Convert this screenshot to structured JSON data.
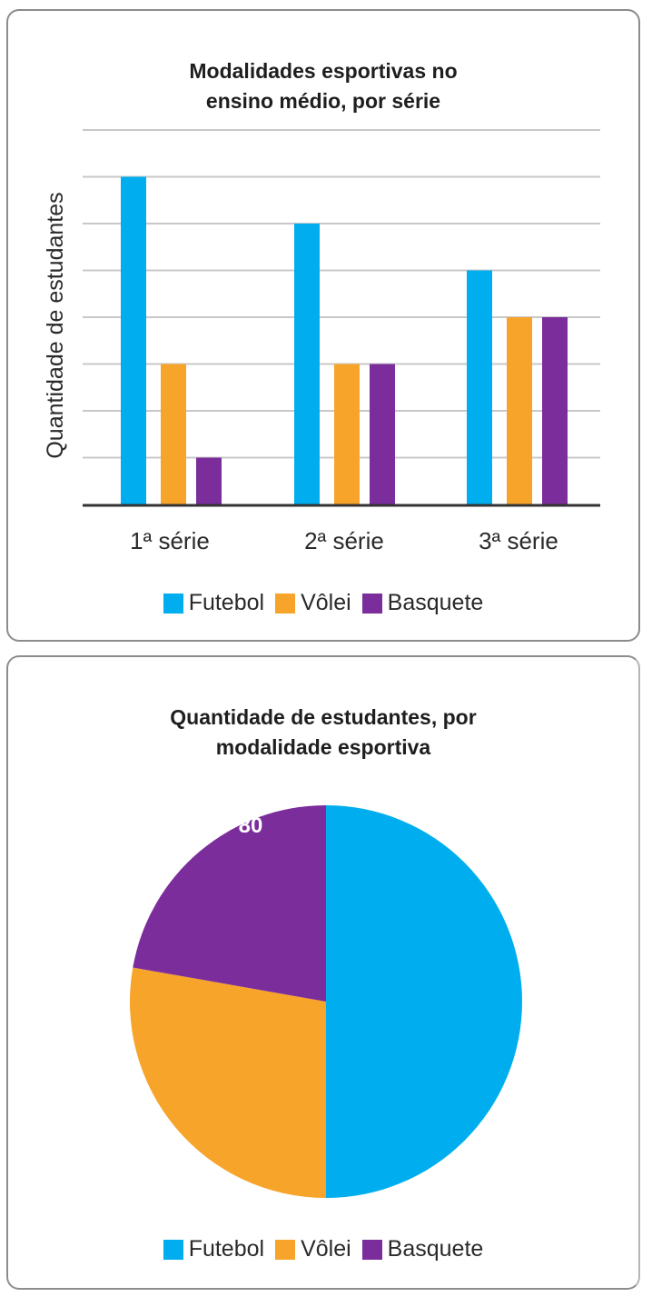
{
  "colors": {
    "futebol": "#00aeef",
    "volei": "#f7a42b",
    "basquete": "#7b2d9b",
    "grid": "#c8c8c8",
    "axis": "#333333"
  },
  "bar_card": {
    "title_line1": "Modalidades esportivas no",
    "title_line2": "ensino médio, por série",
    "ylabel": "Quantidade de estudantes",
    "categories": [
      "1ª série",
      "2ª série",
      "3ª série"
    ],
    "legend": [
      "Futebol",
      "Vôlei",
      "Basquete"
    ]
  },
  "pie_card": {
    "title_line1": "Quantidade de estudantes, por",
    "title_line2": "modalidade esportiva",
    "slice_label": "80",
    "legend": [
      "Futebol",
      "Vôlei",
      "Basquete"
    ]
  },
  "chart_data": [
    {
      "type": "bar",
      "title": "Modalidades esportivas no ensino médio, por série",
      "xlabel": "",
      "ylabel": "Quantidade de estudantes",
      "categories": [
        "1ª série",
        "2ª série",
        "3ª série"
      ],
      "series": [
        {
          "name": "Futebol",
          "color": "#00aeef",
          "values": [
            70,
            60,
            50
          ]
        },
        {
          "name": "Vôlei",
          "color": "#f7a42b",
          "values": [
            30,
            30,
            40
          ]
        },
        {
          "name": "Basquete",
          "color": "#7b2d9b",
          "values": [
            10,
            30,
            40
          ]
        }
      ],
      "ylim": [
        0,
        80
      ],
      "y_tick_labels_shown": false,
      "grid": true,
      "grid_step": 10,
      "legend_position": "bottom"
    },
    {
      "type": "pie",
      "title": "Quantidade de estudantes, por modalidade esportiva",
      "labels": [
        "Futebol",
        "Vôlei",
        "Basquete"
      ],
      "values": [
        180,
        100,
        80
      ],
      "colors": [
        "#00aeef",
        "#f7a42b",
        "#7b2d9b"
      ],
      "data_labels_shown": {
        "Basquete": "80"
      },
      "legend_position": "bottom"
    }
  ]
}
